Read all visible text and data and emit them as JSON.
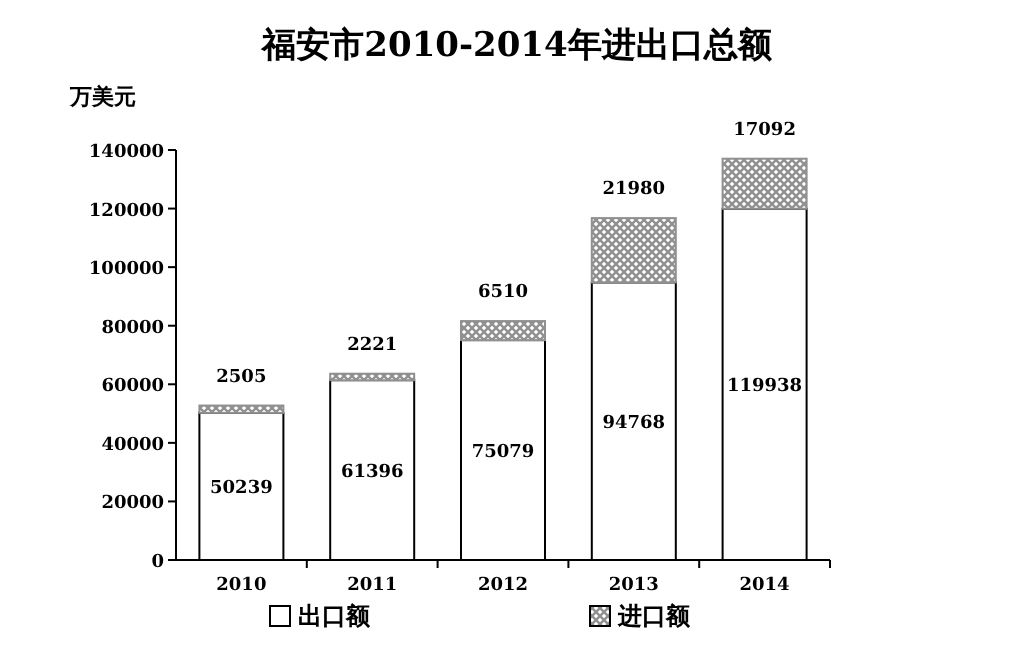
{
  "chart_data": {
    "type": "bar",
    "title": "福安市2010-2014年进出口总额",
    "ylabel": "万美元",
    "stacked": true,
    "data_labels": true,
    "legend": "bottom",
    "categories": [
      "2010",
      "2011",
      "2012",
      "2013",
      "2014"
    ],
    "series": [
      {
        "name": "出口额",
        "color": "#ffffff",
        "values": [
          50239,
          61396,
          75079,
          94768,
          119938
        ]
      },
      {
        "name": "进口额",
        "color": "#909090",
        "values": [
          2505,
          2221,
          6510,
          21980,
          17092
        ]
      }
    ],
    "ylim": [
      0,
      140000
    ],
    "yticks": [
      0,
      20000,
      40000,
      60000,
      80000,
      100000,
      120000,
      140000
    ]
  }
}
